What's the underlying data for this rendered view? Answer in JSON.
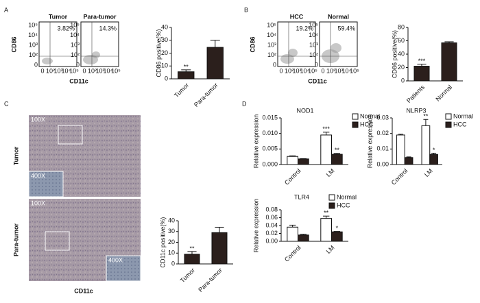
{
  "figure": {
    "panels": [
      "A",
      "B",
      "C",
      "D"
    ],
    "flow_panels": [
      {
        "y_label": "CD86",
        "x_label": "CD11c",
        "plots": [
          {
            "title": "Tumor",
            "percent": "3.82%"
          },
          {
            "title": "Para-tumor",
            "percent": "14.3%"
          }
        ]
      },
      {
        "y_label": "CD86",
        "x_label": "CD11c",
        "plots": [
          {
            "title": "HCC",
            "percent": "19.2%"
          },
          {
            "title": "Normal",
            "percent": "59.4%"
          }
        ]
      }
    ],
    "flow_y_ticks": [
      "10⁵",
      "10⁴",
      "10³",
      "10²",
      "0"
    ],
    "flow_x_ticks": [
      "0",
      "10²",
      "10³",
      "10⁴",
      "10⁵"
    ],
    "images": [
      {
        "row_label": "Tumor",
        "magnifications": [
          "100X",
          "400X"
        ]
      },
      {
        "row_label": "Para-tumor",
        "magnifications": [
          "100X",
          "400X"
        ]
      }
    ],
    "image_x_label": "CD11c"
  },
  "chart_data": [
    {
      "type": "bar",
      "y_label": "CD86 positive(%)",
      "categories": [
        "Tumor",
        "Para-tumor"
      ],
      "values": [
        5.5,
        24.5
      ],
      "errors": [
        1.5,
        5.5
      ],
      "annotations": [
        "**",
        null
      ],
      "color": "#2b1f1c",
      "ylim": [
        0,
        40
      ],
      "yticks": [
        0,
        10,
        20,
        30,
        40
      ]
    },
    {
      "type": "bar",
      "y_label": "CD86 positive(%)",
      "categories": [
        "Patients",
        "Normal"
      ],
      "values": [
        22,
        57
      ],
      "errors": [
        3,
        1.5
      ],
      "annotations": [
        "***",
        null
      ],
      "color": "#2b1f1c",
      "ylim": [
        0,
        80
      ],
      "yticks": [
        0,
        20,
        40,
        60,
        80
      ]
    },
    {
      "type": "bar",
      "y_label": "CD11c positive(%)",
      "categories": [
        "Tumor",
        "Para-tumor"
      ],
      "values": [
        9,
        29
      ],
      "errors": [
        2.5,
        5
      ],
      "annotations": [
        "**",
        null
      ],
      "color": "#2b1f1c",
      "ylim": [
        0,
        40
      ],
      "yticks": [
        0,
        10,
        20,
        30,
        40
      ]
    },
    {
      "type": "grouped_bar",
      "title": "NOD1",
      "y_label": "Relative expression",
      "categories": [
        "Control",
        "LM"
      ],
      "series": [
        {
          "name": "Normal",
          "color": "#ffffff",
          "values": [
            0.0026,
            0.0095
          ],
          "errors": [
            0.0002,
            0.0009
          ],
          "annotations": [
            null,
            "***"
          ]
        },
        {
          "name": "HCC",
          "color": "#2b1f1c",
          "values": [
            0.0018,
            0.0033
          ],
          "errors": [
            0.0001,
            0.0003
          ],
          "annotations": [
            null,
            "**"
          ]
        }
      ],
      "ylim": [
        0,
        0.015
      ],
      "yticks": [
        {
          "value": 0,
          "label": "0.000"
        },
        0.005,
        {
          "value": 0.01,
          "label": "0.010"
        },
        0.015
      ]
    },
    {
      "type": "grouped_bar",
      "title": "NLRP3",
      "y_label": "Relative expression",
      "categories": [
        "Control",
        "LM"
      ],
      "series": [
        {
          "name": "Normal",
          "color": "#ffffff",
          "values": [
            0.019,
            0.025
          ],
          "errors": [
            0.0005,
            0.004
          ],
          "annotations": [
            null,
            "**"
          ]
        },
        {
          "name": "HCC",
          "color": "#2b1f1c",
          "values": [
            0.0045,
            0.0065
          ],
          "errors": [
            0.0004,
            0.0008
          ],
          "annotations": [
            null,
            "*"
          ]
        }
      ],
      "ylim": [
        0,
        0.03
      ],
      "yticks": [
        {
          "value": 0,
          "label": "0.00"
        },
        0.01,
        0.02,
        0.03
      ]
    },
    {
      "type": "grouped_bar",
      "title": "TLR4",
      "y_label": "Relative expression",
      "categories": [
        "Control",
        "LM"
      ],
      "series": [
        {
          "name": "Normal",
          "color": "#ffffff",
          "values": [
            0.036,
            0.058
          ],
          "errors": [
            0.005,
            0.006
          ],
          "annotations": [
            null,
            "**"
          ]
        },
        {
          "name": "HCC",
          "color": "#2b1f1c",
          "values": [
            0.016,
            0.024
          ],
          "errors": [
            0.002,
            0.001
          ],
          "annotations": [
            null,
            "*"
          ]
        }
      ],
      "ylim": [
        0,
        0.08
      ],
      "yticks": [
        {
          "value": 0,
          "label": "0.00"
        },
        0.02,
        0.04,
        0.06,
        0.08
      ]
    }
  ]
}
